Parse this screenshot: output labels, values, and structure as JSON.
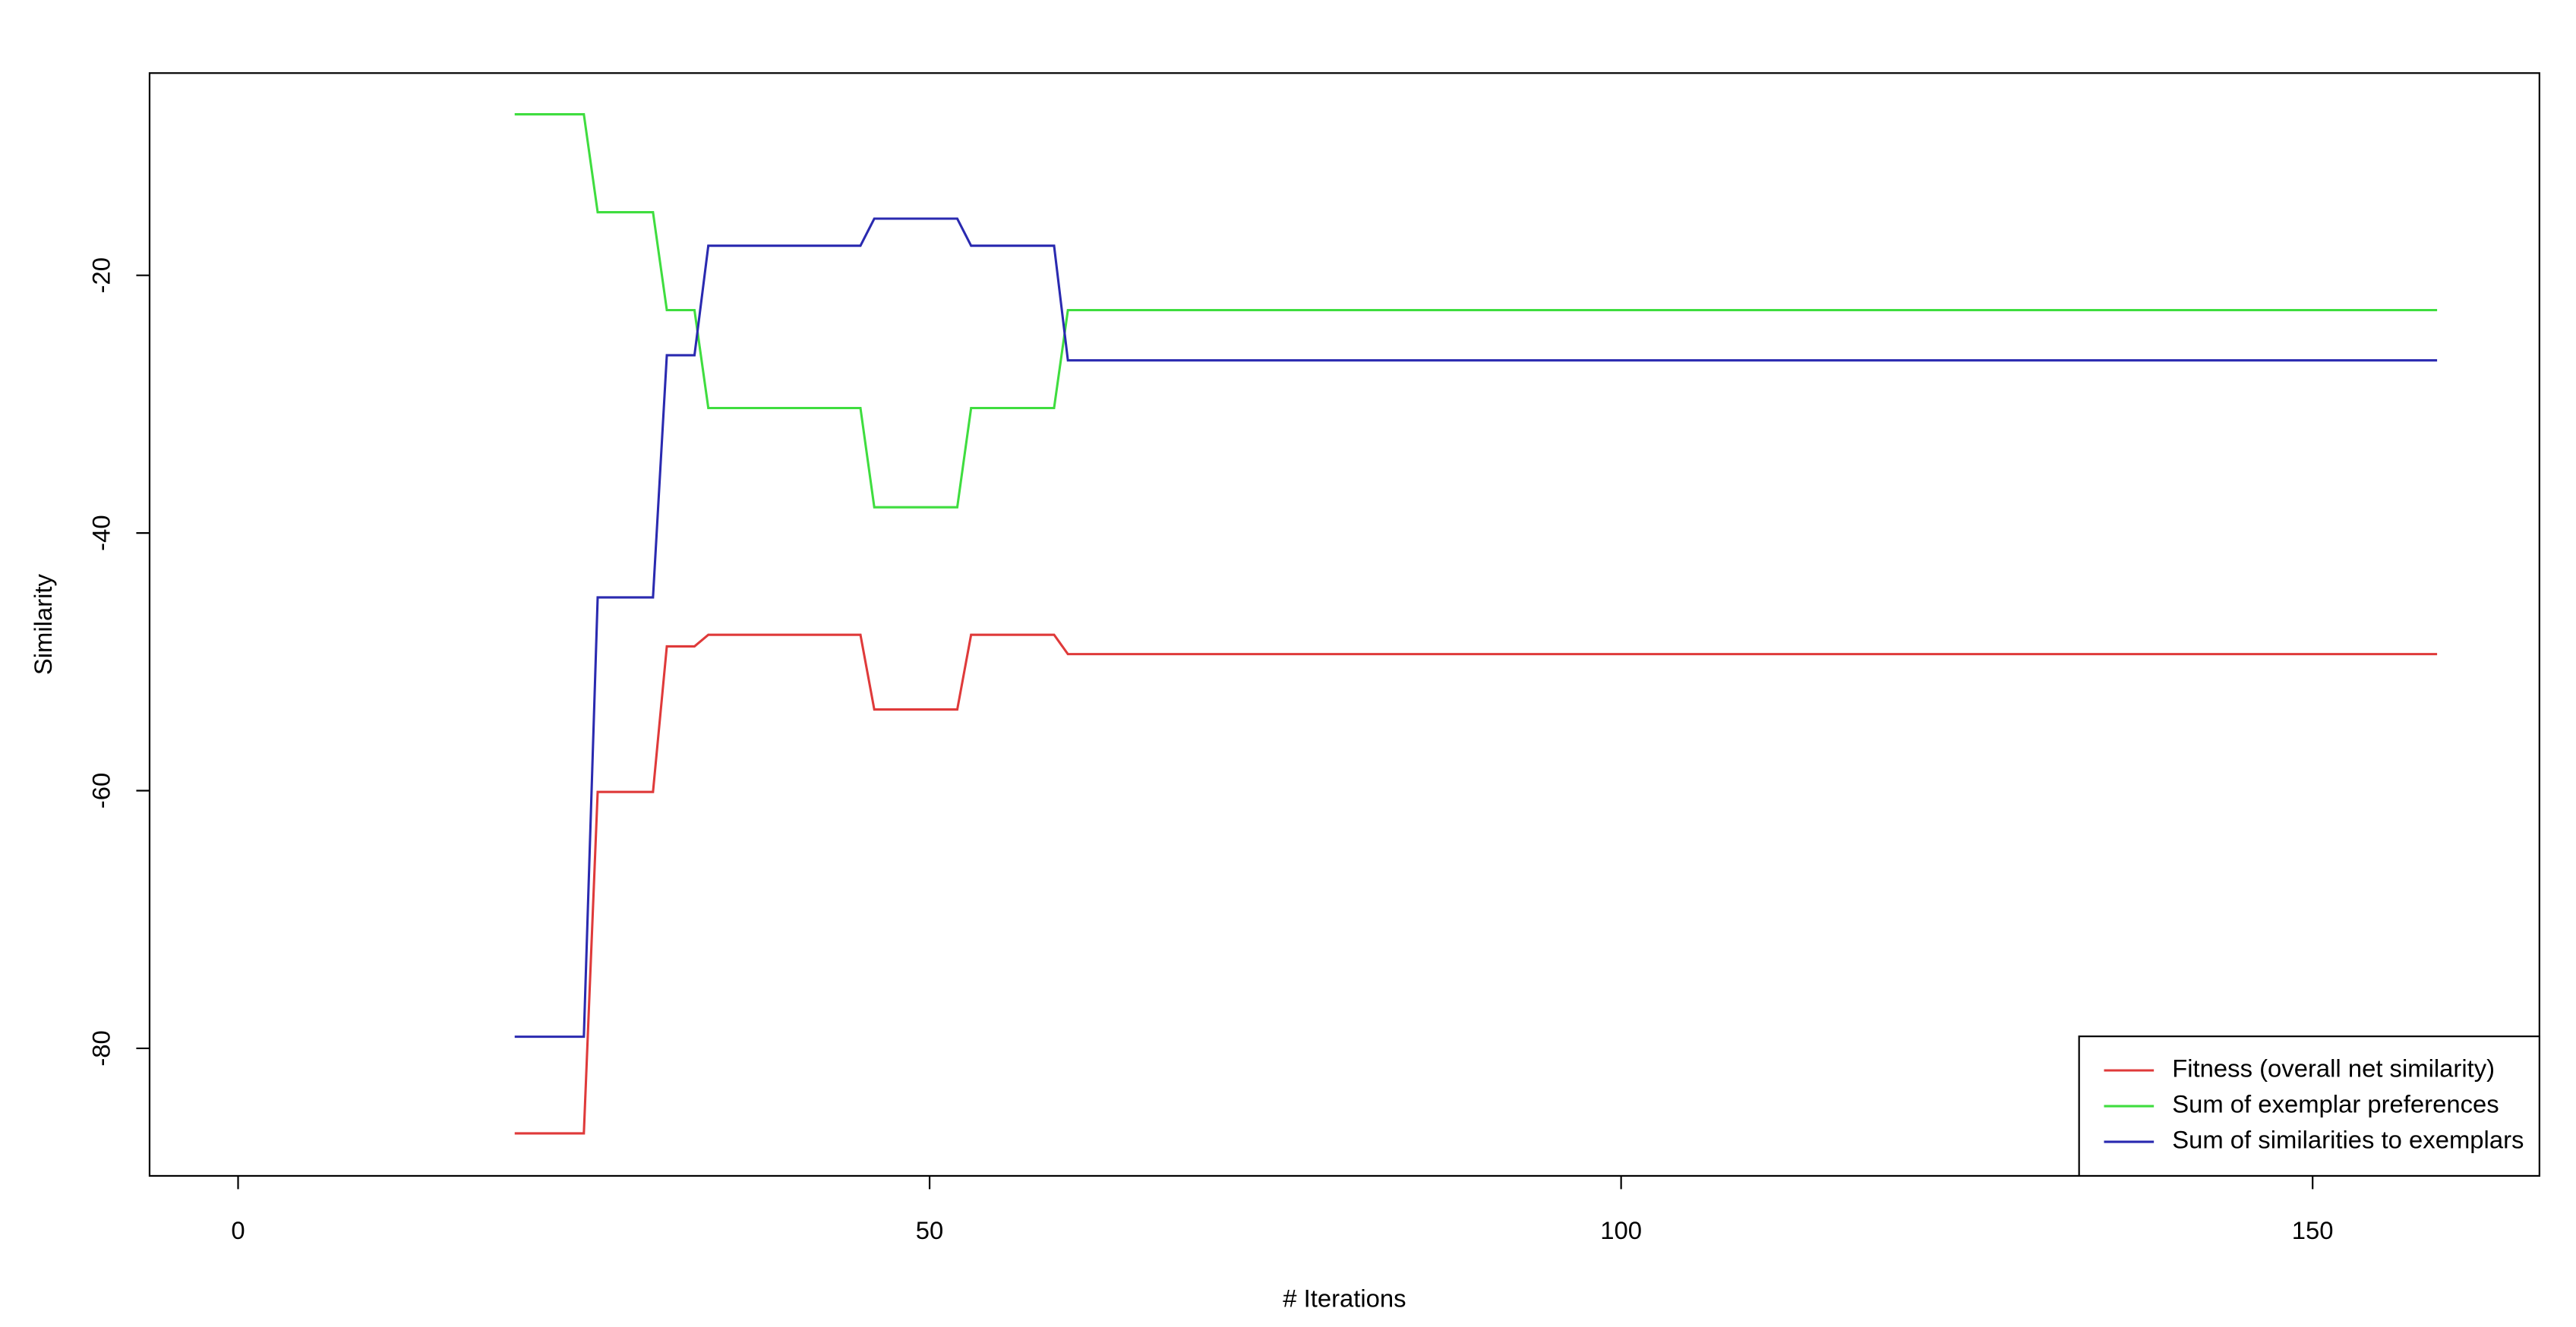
{
  "chart_data": {
    "type": "line",
    "xlabel": "# Iterations",
    "ylabel": "Similarity",
    "x": [
      20,
      25,
      26,
      30,
      31,
      33,
      34,
      45,
      46,
      52,
      53,
      59,
      60,
      159
    ],
    "series": [
      {
        "name": "Fitness (overall net similarity)",
        "color": "#df3a3a",
        "values": [
          -86.6,
          -86.6,
          -60.1,
          -60.1,
          -48.8,
          -48.8,
          -47.9,
          -47.9,
          -53.7,
          -53.7,
          -47.9,
          -47.9,
          -49.4,
          -49.4
        ]
      },
      {
        "name": "Sum of exemplar preferences",
        "color": "#3fdd3f",
        "values": [
          -7.5,
          -7.5,
          -15.1,
          -15.1,
          -22.7,
          -22.7,
          -30.3,
          -30.3,
          -38.0,
          -38.0,
          -30.3,
          -30.3,
          -22.7,
          -22.7
        ]
      },
      {
        "name": "Sum of similarities to exemplars",
        "color": "#2a2ab0",
        "values": [
          -79.1,
          -79.1,
          -45.0,
          -45.0,
          -26.2,
          -26.2,
          -17.7,
          -17.7,
          -15.6,
          -15.6,
          -17.7,
          -17.7,
          -26.6,
          -26.6
        ]
      }
    ],
    "xlim": [
      -6.4,
      166.4
    ],
    "xticks": [
      0,
      50,
      100,
      150
    ],
    "ylim": [
      -89.9,
      -4.3
    ],
    "yticks": [
      -80,
      -60,
      -40,
      -20
    ],
    "legend": "bottom-right"
  }
}
